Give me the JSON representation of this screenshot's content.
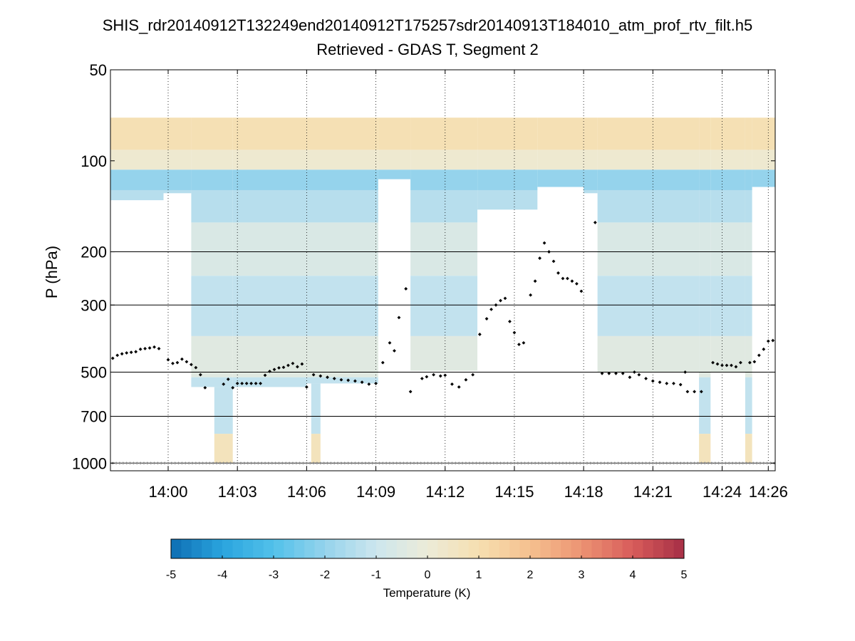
{
  "chart_data": {
    "type": "heatmap",
    "title": "SHIS_rdr20140912T132249end20140912T175257sdr20140913T184010_atm_prof_rtv_filt.h5",
    "subtitle": "Retrieved - GDAS T, Segment 2",
    "ylabel": "P (hPa)",
    "xlabel": "",
    "x_unit": "minutes since 00:00",
    "xlim": [
      837.5,
      866.3
    ],
    "ylim": [
      1060,
      50
    ],
    "y_scale": "log",
    "x_ticks": [
      {
        "value": 840,
        "label": "14:00"
      },
      {
        "value": 843,
        "label": "14:03"
      },
      {
        "value": 846,
        "label": "14:06"
      },
      {
        "value": 849,
        "label": "14:09"
      },
      {
        "value": 852,
        "label": "14:12"
      },
      {
        "value": 855,
        "label": "14:15"
      },
      {
        "value": 858,
        "label": "14:18"
      },
      {
        "value": 861,
        "label": "14:21"
      },
      {
        "value": 864,
        "label": "14:24"
      },
      {
        "value": 866,
        "label": "14:26"
      }
    ],
    "y_ticks": [
      {
        "value": 50,
        "label": "50"
      },
      {
        "value": 100,
        "label": "100"
      },
      {
        "value": 200,
        "label": "200"
      },
      {
        "value": 300,
        "label": "300"
      },
      {
        "value": 500,
        "label": "500"
      },
      {
        "value": 700,
        "label": "700"
      },
      {
        "value": 1000,
        "label": "1000"
      }
    ],
    "grid": "dotted vertical at time ticks, solid horizontal at 200/300/500/700/1000 hPa",
    "colorbar": {
      "label": "Temperature (K)",
      "range": [
        -5,
        5
      ],
      "ticks": [
        {
          "value": -5,
          "label": "-5"
        },
        {
          "value": -4,
          "label": "-4"
        },
        {
          "value": -3,
          "label": "-3"
        },
        {
          "value": -2,
          "label": "-2"
        },
        {
          "value": -1,
          "label": "-1"
        },
        {
          "value": 0,
          "label": "0"
        },
        {
          "value": 1,
          "label": "1"
        },
        {
          "value": 2,
          "label": "2"
        },
        {
          "value": 3,
          "label": "3"
        },
        {
          "value": 4,
          "label": "4"
        },
        {
          "value": 5,
          "label": "5"
        }
      ],
      "colormap": [
        "#0d6eb3",
        "#2aa4de",
        "#52c1ea",
        "#95d3ec",
        "#cde6ee",
        "#ecebd8",
        "#f6dfb0",
        "#f5c08f",
        "#ec9373",
        "#d85c5a",
        "#a62f46"
      ]
    },
    "layers": [
      {
        "p_top": 72,
        "p_bottom": 92,
        "value": 0.9
      },
      {
        "p_top": 92,
        "p_bottom": 107,
        "value": 0.2
      },
      {
        "p_top": 107,
        "p_bottom": 125,
        "value": -2.0
      },
      {
        "p_top": 125,
        "p_bottom": 160,
        "value": -1.4
      },
      {
        "p_top": 160,
        "p_bottom": 240,
        "value": -0.6
      },
      {
        "p_top": 240,
        "p_bottom": 380,
        "value": -1.2
      },
      {
        "p_top": 380,
        "p_bottom": 520,
        "value": -0.4
      },
      {
        "p_top": 520,
        "p_bottom": 800,
        "value": -1.2
      },
      {
        "p_top": 800,
        "p_bottom": 1000,
        "value": 0.7
      }
    ],
    "retrieval_segments": [
      {
        "t_start": 837.5,
        "t_end": 839.8,
        "p_top": 72,
        "p_bottom": 135
      },
      {
        "t_start": 839.8,
        "t_end": 841.0,
        "p_top": 72,
        "p_bottom": 128
      },
      {
        "t_start": 841.0,
        "t_end": 842.8,
        "p_top": 72,
        "p_bottom": 560
      },
      {
        "t_start": 842.0,
        "t_end": 842.8,
        "p_top": 560,
        "p_bottom": 1000
      },
      {
        "t_start": 842.8,
        "t_end": 846.0,
        "p_top": 72,
        "p_bottom": 560
      },
      {
        "t_start": 846.0,
        "t_end": 849.1,
        "p_top": 70,
        "p_bottom": 545
      },
      {
        "t_start": 846.2,
        "t_end": 846.6,
        "p_top": 545,
        "p_bottom": 1000
      },
      {
        "t_start": 849.1,
        "t_end": 850.5,
        "p_top": 70,
        "p_bottom": 115
      },
      {
        "t_start": 850.5,
        "t_end": 853.4,
        "p_top": 70,
        "p_bottom": 495
      },
      {
        "t_start": 853.4,
        "t_end": 856.0,
        "p_top": 70,
        "p_bottom": 145
      },
      {
        "t_start": 856.0,
        "t_end": 858.0,
        "p_top": 70,
        "p_bottom": 122
      },
      {
        "t_start": 858.0,
        "t_end": 858.6,
        "p_top": 70,
        "p_bottom": 128
      },
      {
        "t_start": 858.6,
        "t_end": 863.0,
        "p_top": 70,
        "p_bottom": 500
      },
      {
        "t_start": 863.0,
        "t_end": 863.5,
        "p_top": 70,
        "p_bottom": 1000
      },
      {
        "t_start": 863.5,
        "t_end": 865.0,
        "p_top": 70,
        "p_bottom": 500
      },
      {
        "t_start": 865.0,
        "t_end": 865.3,
        "p_top": 70,
        "p_bottom": 1000
      },
      {
        "t_start": 865.3,
        "t_end": 866.3,
        "p_top": 70,
        "p_bottom": 122
      }
    ],
    "cloud_top_points": [
      [
        837.6,
        450
      ],
      [
        837.8,
        440
      ],
      [
        838.0,
        435
      ],
      [
        838.2,
        432
      ],
      [
        838.4,
        430
      ],
      [
        838.6,
        428
      ],
      [
        838.8,
        420
      ],
      [
        839.0,
        418
      ],
      [
        839.2,
        416
      ],
      [
        839.4,
        413
      ],
      [
        839.6,
        418
      ],
      [
        840.0,
        455
      ],
      [
        840.2,
        468
      ],
      [
        840.4,
        465
      ],
      [
        840.6,
        453
      ],
      [
        840.8,
        462
      ],
      [
        841.0,
        472
      ],
      [
        841.2,
        483
      ],
      [
        841.4,
        510
      ],
      [
        841.6,
        563
      ],
      [
        842.4,
        548
      ],
      [
        842.6,
        528
      ],
      [
        842.8,
        563
      ],
      [
        843.0,
        545
      ],
      [
        843.2,
        545
      ],
      [
        843.4,
        545
      ],
      [
        843.6,
        545
      ],
      [
        843.8,
        545
      ],
      [
        844.0,
        545
      ],
      [
        844.2,
        512
      ],
      [
        844.4,
        497
      ],
      [
        844.6,
        490
      ],
      [
        844.8,
        484
      ],
      [
        845.0,
        482
      ],
      [
        845.2,
        475
      ],
      [
        845.4,
        468
      ],
      [
        845.6,
        480
      ],
      [
        845.8,
        470
      ],
      [
        846.0,
        560
      ],
      [
        846.3,
        510
      ],
      [
        846.6,
        515
      ],
      [
        846.9,
        520
      ],
      [
        847.2,
        525
      ],
      [
        847.5,
        530
      ],
      [
        847.8,
        532
      ],
      [
        848.1,
        535
      ],
      [
        848.4,
        540
      ],
      [
        848.7,
        548
      ],
      [
        849.0,
        545
      ],
      [
        849.3,
        465
      ],
      [
        849.6,
        400
      ],
      [
        849.8,
        425
      ],
      [
        850.0,
        330
      ],
      [
        850.3,
        265
      ],
      [
        850.5,
        580
      ],
      [
        851.0,
        525
      ],
      [
        851.2,
        518
      ],
      [
        851.5,
        510
      ],
      [
        851.8,
        515
      ],
      [
        852.0,
        512
      ],
      [
        852.3,
        548
      ],
      [
        852.6,
        560
      ],
      [
        852.9,
        530
      ],
      [
        853.2,
        510
      ],
      [
        853.5,
        375
      ],
      [
        853.8,
        333
      ],
      [
        854.0,
        310
      ],
      [
        854.2,
        300
      ],
      [
        854.4,
        290
      ],
      [
        854.6,
        285
      ],
      [
        854.8,
        340
      ],
      [
        855.0,
        370
      ],
      [
        855.2,
        405
      ],
      [
        855.4,
        400
      ],
      [
        855.7,
        278
      ],
      [
        855.9,
        250
      ],
      [
        856.1,
        210
      ],
      [
        856.3,
        187
      ],
      [
        856.5,
        200
      ],
      [
        856.7,
        215
      ],
      [
        856.9,
        235
      ],
      [
        857.1,
        245
      ],
      [
        857.3,
        245
      ],
      [
        857.5,
        250
      ],
      [
        857.7,
        255
      ],
      [
        857.9,
        270
      ],
      [
        858.5,
        160
      ],
      [
        858.8,
        505
      ],
      [
        859.1,
        505
      ],
      [
        859.4,
        505
      ],
      [
        859.7,
        505
      ],
      [
        860.0,
        520
      ],
      [
        860.2,
        500
      ],
      [
        860.4,
        510
      ],
      [
        860.7,
        525
      ],
      [
        861.0,
        535
      ],
      [
        861.3,
        540
      ],
      [
        861.6,
        545
      ],
      [
        861.9,
        545
      ],
      [
        862.2,
        550
      ],
      [
        862.4,
        500
      ],
      [
        862.5,
        580
      ],
      [
        862.8,
        580
      ],
      [
        863.1,
        580
      ],
      [
        863.6,
        465
      ],
      [
        863.8,
        470
      ],
      [
        864.0,
        475
      ],
      [
        864.2,
        475
      ],
      [
        864.4,
        475
      ],
      [
        864.6,
        480
      ],
      [
        864.8,
        465
      ],
      [
        865.2,
        465
      ],
      [
        865.4,
        462
      ],
      [
        865.6,
        440
      ],
      [
        865.8,
        420
      ],
      [
        866.0,
        395
      ],
      [
        866.2,
        393
      ]
    ],
    "surface_points": {
      "p": 1000,
      "t_start": 837.6,
      "t_end": 866.3,
      "step": 0.15
    }
  }
}
